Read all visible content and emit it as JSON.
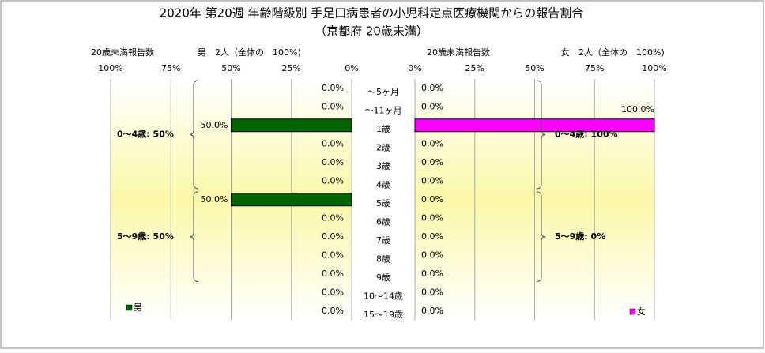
{
  "chart_data": {
    "type": "butterfly",
    "title": "2020年 第20週 年齢階級別 手足口病患者の小児科定点医療機関からの報告割合",
    "subtitle": "（京都府 20歳未満）",
    "categories": [
      "～5ヶ月",
      "～11ヶ月",
      "1歳",
      "2歳",
      "3歳",
      "4歳",
      "5歳",
      "6歳",
      "7歳",
      "8歳",
      "9歳",
      "10～14歳",
      "15～19歳"
    ],
    "series": [
      {
        "name": "男",
        "color": "#006400",
        "side": "left",
        "count_label": "20歳未満報告数",
        "summary": "男　2人（全体の　100%)",
        "values": [
          0,
          0,
          50,
          0,
          0,
          0,
          50,
          0,
          0,
          0,
          0,
          0,
          0
        ],
        "value_labels": [
          "0.0%",
          "0.0%",
          "50.0%",
          "0.0%",
          "0.0%",
          "0.0%",
          "50.0%",
          "0.0%",
          "0.0%",
          "0.0%",
          "0.0%",
          "0.0%",
          "0.0%"
        ],
        "xlim": [
          0,
          100
        ],
        "xticks": [
          {
            "value": 100,
            "label": "100%"
          },
          {
            "value": 75,
            "label": "75%"
          },
          {
            "value": 50,
            "label": "50%"
          },
          {
            "value": 25,
            "label": "25%"
          },
          {
            "value": 0,
            "label": "0%"
          }
        ],
        "annotations": [
          "0～4歳: 50%",
          "5～9歳: 50%"
        ]
      },
      {
        "name": "女",
        "color": "#ff00ff",
        "side": "right",
        "count_label": "20歳未満報告数",
        "summary": "女　2人（全体の　100%)",
        "values": [
          0,
          0,
          100,
          0,
          0,
          0,
          0,
          0,
          0,
          0,
          0,
          0,
          0
        ],
        "value_labels": [
          "0.0%",
          "0.0%",
          "100.0%",
          "0.0%",
          "0.0%",
          "0.0%",
          "0.0%",
          "0.0%",
          "0.0%",
          "0.0%",
          "0.0%",
          "0.0%",
          "0.0%"
        ],
        "xlim": [
          0,
          100
        ],
        "xticks": [
          {
            "value": 0,
            "label": "0%"
          },
          {
            "value": 25,
            "label": "25%"
          },
          {
            "value": 50,
            "label": "50%"
          },
          {
            "value": 75,
            "label": "75%"
          },
          {
            "value": 100,
            "label": "100%"
          }
        ],
        "annotations": [
          "0～4歳: 100%",
          "5～9歳: 0%"
        ]
      }
    ],
    "grid": true
  }
}
